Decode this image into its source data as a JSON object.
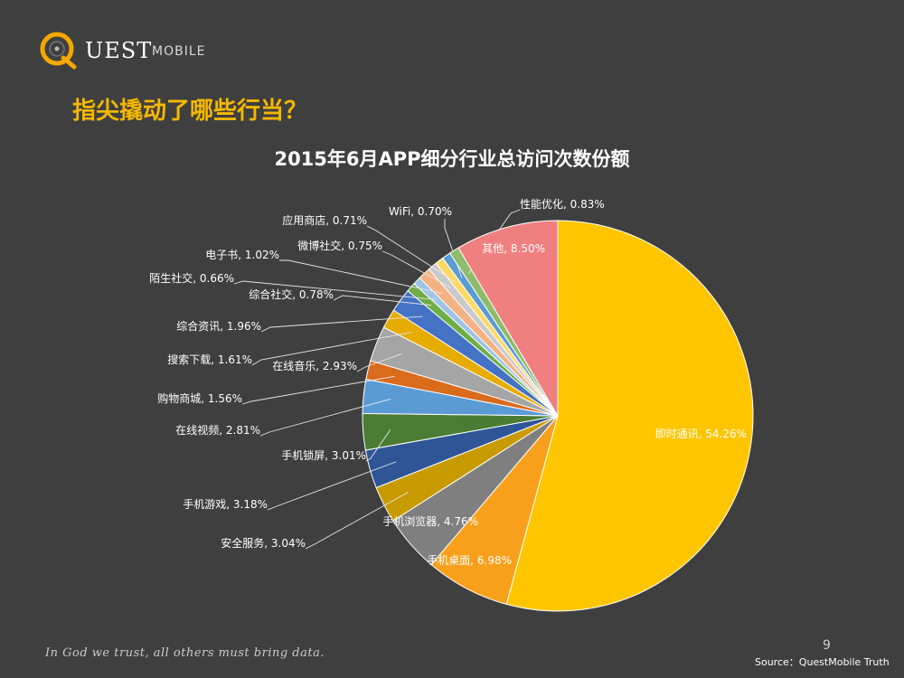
{
  "logo": {
    "letter": "Q",
    "text": "UEST",
    "sub": "MOBILE"
  },
  "headline": "指尖撬动了哪些行当？",
  "footer": {
    "motto": "In God we trust, all others must bring data.",
    "page": "9",
    "source": "Source：QuestMobile Truth"
  },
  "colors": {
    "background": "#3f3f3f",
    "accent": "#f5b800"
  },
  "chart_data": {
    "type": "pie",
    "title": "2015年6月APP细分行业总访问次数份额",
    "start": "12 o'clock",
    "direction": "clockwise",
    "slices": [
      {
        "name": "即时通讯",
        "value": 54.26,
        "label": "即时通讯, 54.26%",
        "color": "#ffc600"
      },
      {
        "name": "手机桌面",
        "value": 6.98,
        "label": "手机桌面, 6.98%",
        "color": "#f8a01c"
      },
      {
        "name": "手机浏览器",
        "value": 4.76,
        "label": "手机浏览器, 4.76%",
        "color": "#7f7f7f"
      },
      {
        "name": "安全服务",
        "value": 3.04,
        "label": "安全服务, 3.04%",
        "color": "#c79b00"
      },
      {
        "name": "手机游戏",
        "value": 3.18,
        "label": "手机游戏, 3.18%",
        "color": "#2f5597"
      },
      {
        "name": "手机锁屏",
        "value": 3.01,
        "label": "手机锁屏, 3.01%",
        "color": "#4a7d33"
      },
      {
        "name": "在线视频",
        "value": 2.81,
        "label": "在线视频, 2.81%",
        "color": "#5b9bd5"
      },
      {
        "name": "购物商城",
        "value": 1.56,
        "label": "购物商城, 1.56%",
        "color": "#d96b1c"
      },
      {
        "name": "在线音乐",
        "value": 2.93,
        "label": "在线音乐, 2.93%",
        "color": "#a5a5a5"
      },
      {
        "name": "搜索下载",
        "value": 1.61,
        "label": "搜索下载, 1.61%",
        "color": "#e6ac00"
      },
      {
        "name": "综合资讯",
        "value": 1.96,
        "label": "综合资讯, 1.96%",
        "color": "#4472c4"
      },
      {
        "name": "综合社交",
        "value": 0.78,
        "label": "综合社交, 0.78%",
        "color": "#70ad47"
      },
      {
        "name": "陌生社交",
        "value": 0.66,
        "label": "陌生社交, 0.66%",
        "color": "#9dc3e6"
      },
      {
        "name": "电子书",
        "value": 1.02,
        "label": "电子书, 1.02%",
        "color": "#f4b183"
      },
      {
        "name": "微博社交",
        "value": 0.75,
        "label": "微博社交, 0.75%",
        "color": "#c9c9c9"
      },
      {
        "name": "应用商店",
        "value": 0.71,
        "label": "应用商店, 0.71%",
        "color": "#ffd966"
      },
      {
        "name": "WiFi",
        "value": 0.7,
        "label": "WiFi, 0.70%",
        "color": "#5b9bd5"
      },
      {
        "name": "性能优化",
        "value": 0.83,
        "label": "性能优化, 0.83%",
        "color": "#8fbc6a"
      },
      {
        "name": "其他",
        "value": 8.5,
        "label": "其他, 8.50%",
        "color": "#f08080"
      }
    ]
  }
}
